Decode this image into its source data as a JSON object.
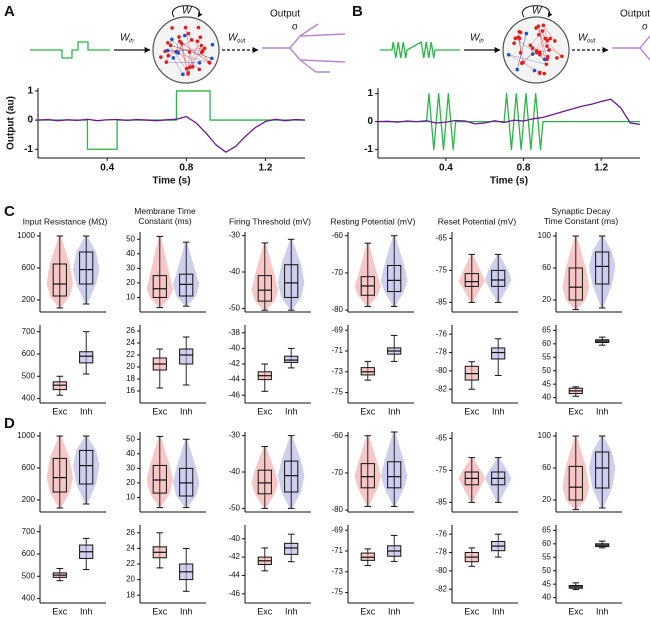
{
  "panels": [
    "A",
    "B",
    "C",
    "D"
  ],
  "diagrams": [
    {
      "w_in": "W",
      "in": "in",
      "w": "W",
      "w_out": "W",
      "out": "out",
      "output": "Output",
      "o": "o"
    },
    {
      "w_in": "W",
      "in": "in",
      "w": "W",
      "w_out": "W",
      "out": "out",
      "output": "Output",
      "o": "o"
    }
  ],
  "chart_data": [
    {
      "type": "line",
      "ylabel": "Output (au)",
      "xlabel": "Time (s)",
      "xlim": [
        0.05,
        1.4
      ],
      "xticks": [
        0.4,
        0.8,
        1.2
      ],
      "ylim": [
        -1.3,
        1.1
      ],
      "yticks": [
        -1,
        0,
        1
      ],
      "series": [
        {
          "color": "#2db34a",
          "x": [
            0.05,
            0.3,
            0.3,
            0.45,
            0.45,
            0.75,
            0.75,
            0.92,
            0.92,
            1.4
          ],
          "values": [
            0,
            0,
            -1,
            -1,
            0,
            0,
            1,
            1,
            0,
            0
          ]
        },
        {
          "color": "#6a1b8f",
          "x": [
            0.05,
            0.1,
            0.15,
            0.2,
            0.25,
            0.3,
            0.35,
            0.4,
            0.45,
            0.5,
            0.55,
            0.6,
            0.65,
            0.7,
            0.75,
            0.8,
            0.85,
            0.9,
            0.95,
            1.0,
            1.05,
            1.1,
            1.15,
            1.2,
            1.25,
            1.3,
            1.35,
            1.4
          ],
          "values": [
            0,
            0.02,
            -0.02,
            0.01,
            -0.01,
            0.03,
            -0.02,
            0.01,
            0.02,
            -0.01,
            0.02,
            0,
            -0.02,
            0.01,
            0.03,
            0.12,
            -0.1,
            -0.45,
            -0.85,
            -1.1,
            -0.9,
            -0.55,
            -0.25,
            -0.05,
            0.03,
            -0.02,
            0.02,
            0
          ]
        }
      ]
    },
    {
      "type": "line",
      "xlabel": "Time (s)",
      "xlim": [
        0.05,
        1.4
      ],
      "xticks": [
        0.4,
        0.8,
        1.2
      ],
      "ylim": [
        -1.3,
        1.2
      ],
      "yticks": [
        -1,
        0,
        1
      ],
      "series": [
        {
          "color": "#2db34a",
          "x": [
            0.05,
            0.3,
            0.3125,
            0.3375,
            0.3625,
            0.3875,
            0.4125,
            0.4375,
            0.45,
            0.7,
            0.7125,
            0.7375,
            0.7625,
            0.7875,
            0.8125,
            0.8375,
            0.8625,
            0.8875,
            0.9,
            1.4
          ],
          "values": [
            0,
            0,
            1,
            -1,
            1,
            -1,
            1,
            -1,
            0,
            0,
            1,
            -1,
            1,
            -1,
            1,
            -1,
            1,
            -1,
            0,
            0
          ]
        },
        {
          "color": "#6a1b8f",
          "x": [
            0.05,
            0.1,
            0.15,
            0.2,
            0.25,
            0.3,
            0.35,
            0.4,
            0.45,
            0.5,
            0.55,
            0.6,
            0.65,
            0.7,
            0.75,
            0.8,
            0.85,
            0.9,
            0.95,
            1.0,
            1.05,
            1.1,
            1.15,
            1.2,
            1.25,
            1.3,
            1.35,
            1.4
          ],
          "values": [
            0,
            0.01,
            -0.02,
            0.02,
            0,
            0.03,
            -0.05,
            -0.02,
            0.04,
            0.02,
            -0.08,
            -0.05,
            0.03,
            -0.03,
            0.05,
            0.02,
            0.1,
            0.15,
            0.25,
            0.35,
            0.45,
            0.55,
            0.62,
            0.72,
            0.8,
            0.5,
            -0.05,
            -0.1
          ]
        }
      ]
    },
    {
      "type": "box",
      "violin": true,
      "title": "Input Resistance (MΩ)",
      "ylim": [
        50,
        1050
      ],
      "yticks": [
        200,
        600,
        1000
      ],
      "series": [
        {
          "color": "#f2a7a7",
          "min": 100,
          "q1": 250,
          "median": 400,
          "q3": 650,
          "max": 1000
        },
        {
          "color": "#b3b3e3",
          "min": 150,
          "q1": 400,
          "median": 580,
          "q3": 800,
          "max": 1000
        }
      ]
    },
    {
      "type": "box",
      "violin": true,
      "title": "Membrane Time Constant (ms)",
      "ylim": [
        0,
        55
      ],
      "yticks": [
        10,
        20,
        30,
        40,
        50
      ],
      "series": [
        {
          "color": "#f2a7a7",
          "min": 3,
          "q1": 10,
          "median": 16,
          "q3": 25,
          "max": 52
        },
        {
          "color": "#b3b3e3",
          "min": 4,
          "q1": 11,
          "median": 19,
          "q3": 26,
          "max": 48
        }
      ]
    },
    {
      "type": "box",
      "violin": true,
      "title": "Firing Threshold (mV)",
      "ylim": [
        -51,
        -29
      ],
      "yticks": [
        -50,
        -40,
        -30
      ],
      "series": [
        {
          "color": "#f2a7a7",
          "min": -50.5,
          "q1": -48,
          "median": -45,
          "q3": -41,
          "max": -32
        },
        {
          "color": "#b3b3e3",
          "min": -50.5,
          "q1": -47,
          "median": -43,
          "q3": -38,
          "max": -31
        }
      ]
    },
    {
      "type": "box",
      "violin": true,
      "title": "Resting Potential (mV)",
      "ylim": [
        -80.5,
        -59
      ],
      "yticks": [
        -80,
        -70,
        -60
      ],
      "series": [
        {
          "color": "#f2a7a7",
          "min": -79,
          "q1": -76,
          "median": -73.5,
          "q3": -71,
          "max": -62
        },
        {
          "color": "#b3b3e3",
          "min": -79,
          "q1": -75,
          "median": -72,
          "q3": -68,
          "max": -60
        }
      ]
    },
    {
      "type": "box",
      "violin": true,
      "title": "Reset Potential (mV)",
      "ylim": [
        -88,
        -63
      ],
      "yticks": [
        -85,
        -75,
        -65
      ],
      "series": [
        {
          "color": "#f2a7a7",
          "min": -85,
          "q1": -80,
          "median": -78.5,
          "q3": -76,
          "max": -70
        },
        {
          "color": "#b3b3e3",
          "min": -85,
          "q1": -80,
          "median": -78,
          "q3": -75,
          "max": -70
        }
      ]
    },
    {
      "type": "box",
      "violin": true,
      "title": "Synaptic Decay Time Constant (ms)",
      "ylim": [
        5,
        105
      ],
      "yticks": [
        20,
        60,
        100
      ],
      "series": [
        {
          "color": "#f2a7a7",
          "min": 8,
          "q1": 20,
          "median": 36,
          "q3": 60,
          "max": 100
        },
        {
          "color": "#b3b3e3",
          "min": 10,
          "q1": 40,
          "median": 62,
          "q3": 80,
          "max": 100
        }
      ]
    },
    {
      "type": "box",
      "categories": [
        "Exc",
        "Inh"
      ],
      "ylim": [
        380,
        730
      ],
      "yticks": [
        400,
        500,
        600,
        700
      ],
      "series": [
        {
          "color": "#f2a7a7",
          "min": 415,
          "q1": 440,
          "median": 460,
          "q3": 475,
          "max": 500
        },
        {
          "color": "#b3b3e3",
          "min": 510,
          "q1": 560,
          "median": 590,
          "q3": 610,
          "max": 700
        }
      ]
    },
    {
      "type": "box",
      "categories": [
        "Exc",
        "Inh"
      ],
      "ylim": [
        14,
        27
      ],
      "yticks": [
        16,
        18,
        20,
        22,
        24,
        26
      ],
      "series": [
        {
          "color": "#f2a7a7",
          "min": 16.5,
          "q1": 19.5,
          "median": 20.5,
          "q3": 21.5,
          "max": 23
        },
        {
          "color": "#b3b3e3",
          "min": 17,
          "q1": 20.5,
          "median": 22,
          "q3": 23,
          "max": 25
        }
      ]
    },
    {
      "type": "box",
      "categories": [
        "Exc",
        "Inh"
      ],
      "ylim": [
        -47,
        -37
      ],
      "yticks": [
        -46,
        -44,
        -42,
        -40,
        -38
      ],
      "series": [
        {
          "color": "#f2a7a7",
          "min": -45.5,
          "q1": -44,
          "median": -43.5,
          "q3": -43,
          "max": -42
        },
        {
          "color": "#b3b3e3",
          "min": -42.5,
          "q1": -41.8,
          "median": -41.5,
          "q3": -41,
          "max": -40
        }
      ]
    },
    {
      "type": "box",
      "categories": [
        "Exc",
        "Inh"
      ],
      "ylim": [
        -76,
        -68.5
      ],
      "yticks": [
        -75,
        -73,
        -71,
        -69
      ],
      "series": [
        {
          "color": "#f2a7a7",
          "min": -73.8,
          "q1": -73.3,
          "median": -73,
          "q3": -72.6,
          "max": -72
        },
        {
          "color": "#b3b3e3",
          "min": -72,
          "q1": -71.3,
          "median": -71,
          "q3": -70.7,
          "max": -69.5
        }
      ]
    },
    {
      "type": "box",
      "categories": [
        "Exc",
        "Inh"
      ],
      "ylim": [
        -83.5,
        -75
      ],
      "yticks": [
        -82,
        -80,
        -78,
        -76
      ],
      "series": [
        {
          "color": "#f2a7a7",
          "min": -82,
          "q1": -81,
          "median": -80.3,
          "q3": -79.5,
          "max": -79
        },
        {
          "color": "#b3b3e3",
          "min": -80.5,
          "q1": -78.7,
          "median": -78,
          "q3": -77.5,
          "max": -76.5
        }
      ]
    },
    {
      "type": "box",
      "categories": [
        "Exc",
        "Inh"
      ],
      "ylim": [
        38,
        67
      ],
      "yticks": [
        40,
        45,
        50,
        55,
        60,
        65
      ],
      "series": [
        {
          "color": "#f2a7a7",
          "min": 40.5,
          "q1": 41.5,
          "median": 42.5,
          "q3": 43.5,
          "max": 44
        },
        {
          "color": "#b3b3e3",
          "min": 59.5,
          "q1": 60.5,
          "median": 61,
          "q3": 61.5,
          "max": 62.5
        }
      ]
    },
    {
      "type": "box",
      "violin": true,
      "ylim": [
        50,
        1050
      ],
      "yticks": [
        200,
        600,
        1000
      ],
      "series": [
        {
          "color": "#f2a7a7",
          "min": 100,
          "q1": 300,
          "median": 480,
          "q3": 720,
          "max": 1000
        },
        {
          "color": "#b3b3e3",
          "min": 150,
          "q1": 400,
          "median": 630,
          "q3": 820,
          "max": 1000
        }
      ]
    },
    {
      "type": "box",
      "violin": true,
      "ylim": [
        0,
        55
      ],
      "yticks": [
        10,
        20,
        30,
        40,
        50
      ],
      "series": [
        {
          "color": "#f2a7a7",
          "min": 3,
          "q1": 13,
          "median": 22,
          "q3": 32,
          "max": 52
        },
        {
          "color": "#b3b3e3",
          "min": 3,
          "q1": 11,
          "median": 20,
          "q3": 30,
          "max": 50
        }
      ]
    },
    {
      "type": "box",
      "violin": true,
      "ylim": [
        -51,
        -29
      ],
      "yticks": [
        -50,
        -40,
        -30
      ],
      "series": [
        {
          "color": "#f2a7a7",
          "min": -50,
          "q1": -46,
          "median": -43,
          "q3": -39.5,
          "max": -33
        },
        {
          "color": "#b3b3e3",
          "min": -50,
          "q1": -45.5,
          "median": -41,
          "q3": -37,
          "max": -30
        }
      ]
    },
    {
      "type": "box",
      "violin": true,
      "ylim": [
        -80.5,
        -59
      ],
      "yticks": [
        -80,
        -70,
        -60
      ],
      "series": [
        {
          "color": "#f2a7a7",
          "min": -79,
          "q1": -74,
          "median": -71,
          "q3": -67.5,
          "max": -60
        },
        {
          "color": "#b3b3e3",
          "min": -79,
          "q1": -74,
          "median": -71,
          "q3": -67,
          "max": -59
        }
      ]
    },
    {
      "type": "box",
      "violin": true,
      "ylim": [
        -88,
        -63
      ],
      "yticks": [
        -85,
        -75,
        -65
      ],
      "series": [
        {
          "color": "#f2a7a7",
          "min": -85,
          "q1": -79.5,
          "median": -77.5,
          "q3": -75.5,
          "max": -71
        },
        {
          "color": "#b3b3e3",
          "min": -85,
          "q1": -79.5,
          "median": -77.5,
          "q3": -75.5,
          "max": -71
        }
      ]
    },
    {
      "type": "box",
      "violin": true,
      "ylim": [
        5,
        105
      ],
      "yticks": [
        20,
        60,
        100
      ],
      "series": [
        {
          "color": "#f2a7a7",
          "min": 8,
          "q1": 20,
          "median": 36,
          "q3": 62,
          "max": 100
        },
        {
          "color": "#b3b3e3",
          "min": 10,
          "q1": 35,
          "median": 60,
          "q3": 80,
          "max": 100
        }
      ]
    },
    {
      "type": "box",
      "categories": [
        "Exc",
        "Inh"
      ],
      "ylim": [
        380,
        730
      ],
      "yticks": [
        400,
        500,
        600,
        700
      ],
      "series": [
        {
          "color": "#f2a7a7",
          "min": 480,
          "q1": 495,
          "median": 505,
          "q3": 515,
          "max": 535
        },
        {
          "color": "#b3b3e3",
          "min": 530,
          "q1": 580,
          "median": 610,
          "q3": 640,
          "max": 670
        }
      ]
    },
    {
      "type": "box",
      "categories": [
        "Exc",
        "Inh"
      ],
      "ylim": [
        17,
        27
      ],
      "yticks": [
        18,
        20,
        22,
        24,
        26
      ],
      "series": [
        {
          "color": "#f2a7a7",
          "min": 21.5,
          "q1": 22.8,
          "median": 23.5,
          "q3": 24.2,
          "max": 26
        },
        {
          "color": "#b3b3e3",
          "min": 18.5,
          "q1": 20,
          "median": 21,
          "q3": 22,
          "max": 24
        }
      ]
    },
    {
      "type": "box",
      "categories": [
        "Exc",
        "Inh"
      ],
      "ylim": [
        -47,
        -38.5
      ],
      "yticks": [
        -46,
        -44,
        -42,
        -40
      ],
      "series": [
        {
          "color": "#f2a7a7",
          "min": -43.5,
          "q1": -42.8,
          "median": -42.4,
          "q3": -42,
          "max": -41
        },
        {
          "color": "#b3b3e3",
          "min": -42.5,
          "q1": -41.7,
          "median": -41,
          "q3": -40.5,
          "max": -39.5
        }
      ]
    },
    {
      "type": "box",
      "categories": [
        "Exc",
        "Inh"
      ],
      "ylim": [
        -76,
        -68.5
      ],
      "yticks": [
        -75,
        -73,
        -71,
        -69
      ],
      "series": [
        {
          "color": "#f2a7a7",
          "min": -72.4,
          "q1": -71.9,
          "median": -71.6,
          "q3": -71.2,
          "max": -70.8
        },
        {
          "color": "#b3b3e3",
          "min": -72,
          "q1": -71.5,
          "median": -71,
          "q3": -70.5,
          "max": -69.5
        }
      ]
    },
    {
      "type": "box",
      "categories": [
        "Exc",
        "Inh"
      ],
      "ylim": [
        -83.5,
        -75
      ],
      "yticks": [
        -82,
        -80,
        -78,
        -76
      ],
      "series": [
        {
          "color": "#f2a7a7",
          "min": -79.5,
          "q1": -79,
          "median": -78.5,
          "q3": -78,
          "max": -77.5
        },
        {
          "color": "#b3b3e3",
          "min": -78.5,
          "q1": -77.8,
          "median": -77.3,
          "q3": -76.8,
          "max": -76
        }
      ]
    },
    {
      "type": "box",
      "categories": [
        "Exc",
        "Inh"
      ],
      "ylim": [
        38,
        67
      ],
      "yticks": [
        40,
        45,
        50,
        55,
        60,
        65
      ],
      "series": [
        {
          "color": "#f2a7a7",
          "min": 43,
          "q1": 43.5,
          "median": 44,
          "q3": 44.5,
          "max": 45.5
        },
        {
          "color": "#b3b3e3",
          "min": 58.5,
          "q1": 59,
          "median": 59.5,
          "q3": 60,
          "max": 61
        }
      ]
    }
  ]
}
